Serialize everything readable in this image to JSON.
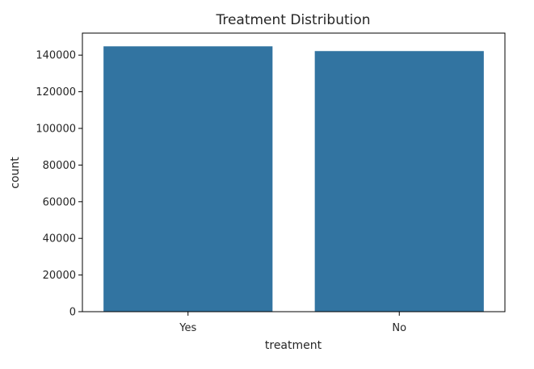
{
  "chart_data": {
    "type": "bar",
    "title": "Treatment Distribution",
    "xlabel": "treatment",
    "ylabel": "count",
    "categories": [
      "Yes",
      "No"
    ],
    "values": [
      144800,
      142200
    ],
    "ylim": [
      0,
      152000
    ],
    "yticks": [
      0,
      20000,
      40000,
      60000,
      80000,
      100000,
      120000,
      140000
    ],
    "ytick_labels": [
      "0",
      "20000",
      "40000",
      "60000",
      "80000",
      "100000",
      "120000",
      "140000"
    ],
    "bar_color": "#3274a1",
    "grid": false,
    "legend": "none"
  }
}
